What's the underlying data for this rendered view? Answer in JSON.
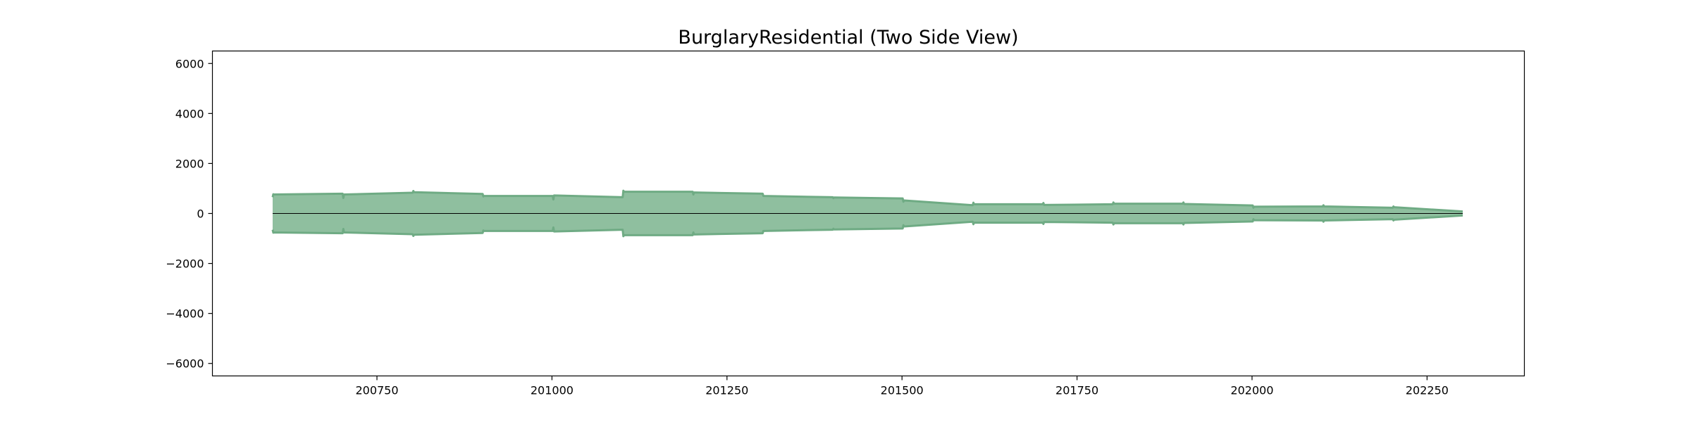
{
  "chart_data": {
    "type": "area",
    "title": "BurglaryResidential (Two Side View)",
    "subtitle": "",
    "xlabel": "",
    "ylabel": "",
    "x_ticks": [
      "200750",
      "201000",
      "201250",
      "201500",
      "201750",
      "202000",
      "202250"
    ],
    "y_ticks": [
      "6000",
      "4000",
      "2000",
      "0",
      "−2000",
      "−4000",
      "−6000"
    ],
    "xlim": [
      200515,
      202389
    ],
    "ylim": [
      -6500,
      6500
    ],
    "grid": false,
    "legend": "none",
    "fill_color": "#8fbf9f",
    "line_color": "#6fab84",
    "baseline_color": "#000000",
    "series": [
      {
        "mirrored": true,
        "x": [
          200601,
          200602,
          200603,
          200701,
          200702,
          200703,
          200801,
          200802,
          200803,
          200901,
          200902,
          200903,
          201001,
          201002,
          201003,
          201101,
          201102,
          201103,
          201201,
          201202,
          201203,
          201301,
          201302,
          201303,
          201401,
          201402,
          201403,
          201501,
          201502,
          201503,
          201601,
          201602,
          201603,
          201701,
          201702,
          201703,
          201801,
          201802,
          201803,
          201901,
          201902,
          201903,
          202001,
          202002,
          202003,
          202101,
          202102,
          202103,
          202201,
          202202,
          202203,
          202301
        ],
        "values": [
          650,
          770,
          760,
          790,
          620,
          760,
          830,
          900,
          850,
          780,
          680,
          700,
          700,
          560,
          720,
          650,
          910,
          870,
          870,
          760,
          840,
          790,
          700,
          700,
          650,
          610,
          640,
          600,
          470,
          520,
          330,
          430,
          370,
          370,
          420,
          340,
          370,
          440,
          390,
          390,
          440,
          380,
          320,
          230,
          270,
          280,
          330,
          280,
          230,
          280,
          250,
          80
        ]
      }
    ]
  }
}
